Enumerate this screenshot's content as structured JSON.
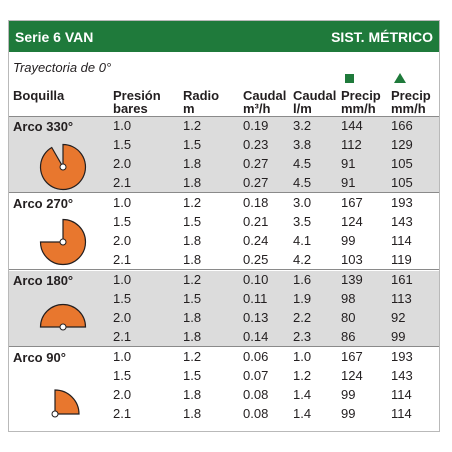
{
  "header": {
    "series": "Serie 6 VAN",
    "system": "SIST. MÉTRICO"
  },
  "subtitle": "Trayectoria de 0°",
  "columns": {
    "nozzle": "Boquilla",
    "pressure": [
      "Presión",
      "bares"
    ],
    "radius": [
      "Radio",
      "m"
    ],
    "flow_m3h": [
      "Caudal",
      "m³/h"
    ],
    "flow_lm": [
      "Caudal",
      "l/m"
    ],
    "precip_square": [
      "Precip",
      "mm/h"
    ],
    "precip_triangle": [
      "Precip",
      "mm/h"
    ]
  },
  "colors": {
    "header_bg": "#1f7a3b",
    "arc_orange": "#e8772e",
    "shade": "#dcdcdc"
  },
  "groups": [
    {
      "label": "Arco 330°",
      "icon": "arc-330-icon",
      "rows": [
        [
          "1.0",
          "1.2",
          "0.19",
          "3.2",
          "144",
          "166"
        ],
        [
          "1.5",
          "1.5",
          "0.23",
          "3.8",
          "112",
          "129"
        ],
        [
          "2.0",
          "1.8",
          "0.27",
          "4.5",
          "91",
          "105"
        ],
        [
          "2.1",
          "1.8",
          "0.27",
          "4.5",
          "91",
          "105"
        ]
      ]
    },
    {
      "label": "Arco 270°",
      "icon": "arc-270-icon",
      "rows": [
        [
          "1.0",
          "1.2",
          "0.18",
          "3.0",
          "167",
          "193"
        ],
        [
          "1.5",
          "1.5",
          "0.21",
          "3.5",
          "124",
          "143"
        ],
        [
          "2.0",
          "1.8",
          "0.24",
          "4.1",
          "99",
          "114"
        ],
        [
          "2.1",
          "1.8",
          "0.25",
          "4.2",
          "103",
          "119"
        ]
      ]
    },
    {
      "label": "Arco 180°",
      "icon": "arc-180-icon",
      "rows": [
        [
          "1.0",
          "1.2",
          "0.10",
          "1.6",
          "139",
          "161"
        ],
        [
          "1.5",
          "1.5",
          "0.11",
          "1.9",
          "98",
          "113"
        ],
        [
          "2.0",
          "1.8",
          "0.13",
          "2.2",
          "80",
          "92"
        ],
        [
          "2.1",
          "1.8",
          "0.14",
          "2.3",
          "86",
          "99"
        ]
      ]
    },
    {
      "label": "Arco 90°",
      "icon": "arc-90-icon",
      "rows": [
        [
          "1.0",
          "1.2",
          "0.06",
          "1.0",
          "167",
          "193"
        ],
        [
          "1.5",
          "1.5",
          "0.07",
          "1.2",
          "124",
          "143"
        ],
        [
          "2.0",
          "1.8",
          "0.08",
          "1.4",
          "99",
          "114"
        ],
        [
          "2.1",
          "1.8",
          "0.08",
          "1.4",
          "99",
          "114"
        ]
      ]
    }
  ]
}
